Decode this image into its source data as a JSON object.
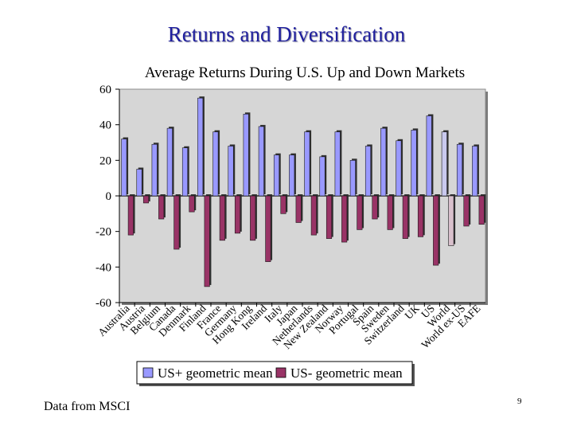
{
  "slide": {
    "title": "Returns and Diversification",
    "footer_source": "Data from MSCI",
    "page_number": "9"
  },
  "chart_data": {
    "type": "bar",
    "title": "Average Returns During U.S. Up and Down Markets",
    "xlabel": "",
    "ylabel": "",
    "ylim": [
      -60,
      60
    ],
    "yticks": [
      60,
      40,
      20,
      0,
      -20,
      -40,
      -60
    ],
    "grid": false,
    "legend_position": "bottom",
    "categories": [
      "Australia",
      "Austria",
      "Belgium",
      "Canada",
      "Denmark",
      "Finland",
      "France",
      "Germany",
      "Hong Kong",
      "Ireland",
      "Italy",
      "Japan",
      "Netherlands",
      "New Zealand",
      "Norway",
      "Portugal",
      "Spain",
      "Sweden",
      "Switzerland",
      "UK",
      "US",
      "World",
      "World ex-US",
      "EAFE"
    ],
    "series": [
      {
        "name": "US+ geometric mean",
        "color": "#9999ff",
        "values": [
          32,
          15,
          29,
          38,
          27,
          55,
          36,
          28,
          46,
          39,
          23,
          23,
          36,
          22,
          36,
          20,
          28,
          38,
          31,
          37,
          45,
          36,
          29,
          28
        ]
      },
      {
        "name": "US- geometric mean",
        "color": "#993366",
        "values": [
          -22,
          -4,
          -13,
          -30,
          -9,
          -51,
          -25,
          -21,
          -25,
          -37,
          -10,
          -15,
          -22,
          -24,
          -26,
          -19,
          -13,
          -19,
          -24,
          -23,
          -39,
          -28,
          -17,
          -16
        ]
      }
    ]
  }
}
